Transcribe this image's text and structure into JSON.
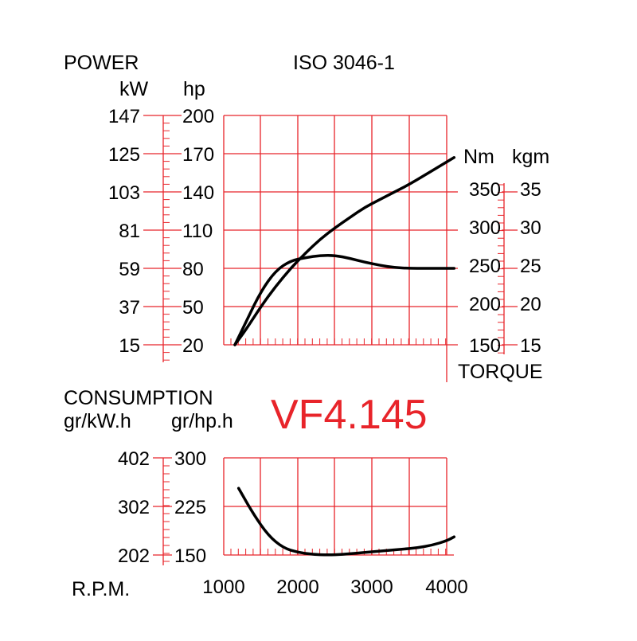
{
  "colors": {
    "grid": "#e8242a",
    "curve": "#000000",
    "model": "#e8242a"
  },
  "header": {
    "standard": "ISO 3046-1",
    "model": "VF4.145"
  },
  "chart_data": [
    {
      "type": "line",
      "title": "",
      "x": {
        "label": "",
        "range": [
          1000,
          4000
        ]
      },
      "left_axes": {
        "title": "POWER",
        "kw": {
          "unit": "kW",
          "ticks": [
            "147",
            "125",
            "103",
            "81",
            "59",
            "37",
            "15"
          ]
        },
        "hp": {
          "unit": "hp",
          "ticks": [
            "200",
            "170",
            "140",
            "110",
            "80",
            "50",
            "20"
          ],
          "range": [
            20,
            200
          ]
        }
      },
      "right_axes": {
        "title": "TORQUE",
        "nm": {
          "unit": "Nm",
          "ticks": [
            "350",
            "300",
            "250",
            "200",
            "150"
          ],
          "range": [
            150,
            350
          ]
        },
        "kgm": {
          "unit": "kgm",
          "ticks": [
            "35",
            "30",
            "25",
            "20",
            "15"
          ]
        }
      },
      "grid": true,
      "series": [
        {
          "kind": "power_hp",
          "x": [
            1150,
            1300,
            1500,
            1700,
            1900,
            2100,
            2300,
            2500,
            2700,
            2900,
            3100,
            3300,
            3500,
            3700,
            3900,
            4100
          ],
          "y": [
            20,
            32,
            50,
            66,
            80,
            92,
            103,
            112,
            120,
            128,
            134,
            140,
            146,
            153,
            160,
            167
          ]
        },
        {
          "kind": "torque_nm",
          "x": [
            1150,
            1300,
            1500,
            1700,
            1900,
            2100,
            2300,
            2500,
            2700,
            2900,
            3100,
            3300,
            3500,
            3700,
            3900,
            4100
          ],
          "y": [
            150,
            180,
            220,
            247,
            260,
            264,
            267,
            267,
            263,
            258,
            254,
            251,
            250,
            250,
            250,
            250
          ]
        }
      ]
    },
    {
      "type": "line",
      "title": "CONSUMPTION",
      "x": {
        "label": "R.P.M.",
        "ticks": [
          "1000",
          "2000",
          "3000",
          "4000"
        ],
        "range": [
          1000,
          4000
        ]
      },
      "left_axes": {
        "gkwh": {
          "unit": "gr/kW.h",
          "ticks": [
            "402",
            "302",
            "202"
          ]
        },
        "ghph": {
          "unit": "gr/hp.h",
          "ticks": [
            "300",
            "225",
            "150"
          ],
          "range": [
            150,
            300
          ]
        }
      },
      "grid": true,
      "series": [
        {
          "kind": "consumption_ghph",
          "x": [
            1200,
            1400,
            1600,
            1800,
            2000,
            2200,
            2400,
            2600,
            2800,
            3000,
            3200,
            3400,
            3600,
            3800,
            4000,
            4100
          ],
          "y": [
            253,
            213,
            180,
            161,
            154,
            151,
            150,
            151,
            153,
            155,
            157,
            159,
            161,
            165,
            172,
            178
          ]
        }
      ]
    }
  ]
}
